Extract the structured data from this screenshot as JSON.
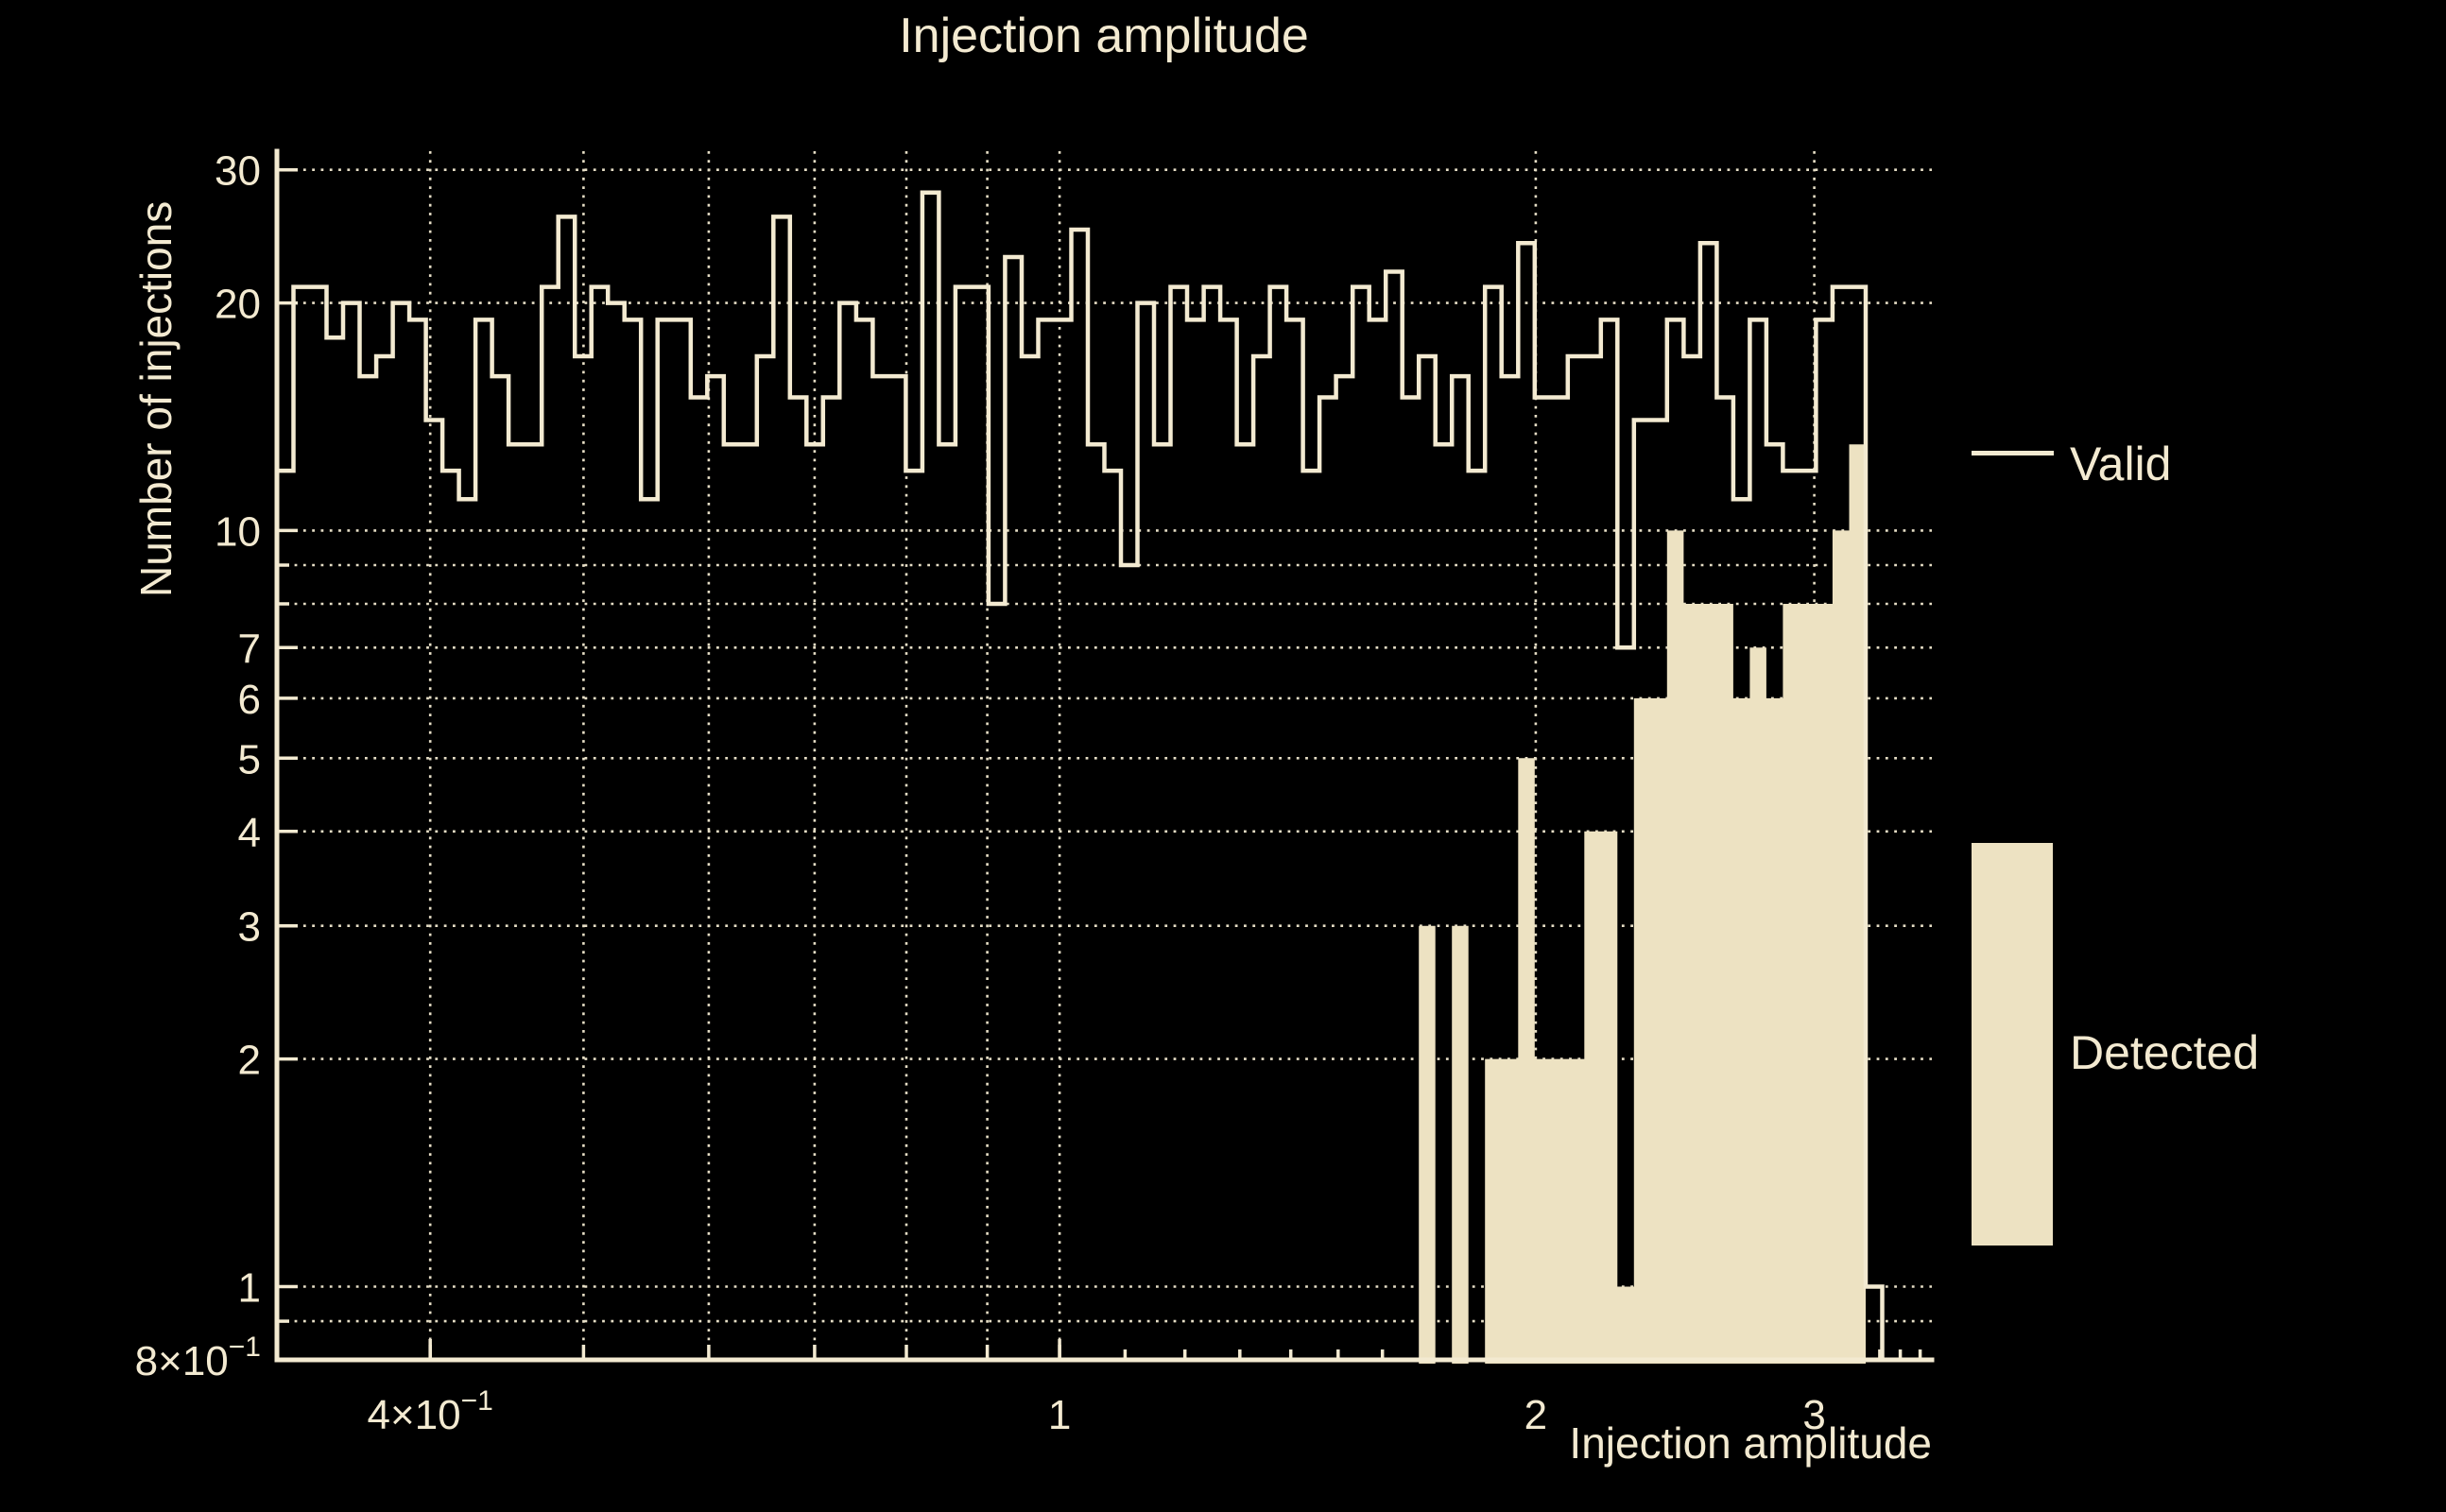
{
  "chart_data": {
    "type": "bar",
    "subtype": "step-histogram-log-log",
    "title": "Injection amplitude",
    "xlabel": "Injection amplitude",
    "ylabel": "Number of injections",
    "x_scale": "log",
    "y_scale": "log",
    "x_range": [
      0.32,
      3.56
    ],
    "y_range": [
      0.8,
      31.75
    ],
    "grid": "dotted",
    "legend_position": "right",
    "bins": {
      "n": 100,
      "xmin": 0.32,
      "xmax": 3.56,
      "spacing": "log"
    },
    "series": [
      {
        "name": "Valid",
        "style": "step-outline",
        "values": [
          12,
          21,
          21,
          18,
          20,
          16,
          17,
          20,
          19,
          14,
          12,
          11,
          19,
          16,
          13,
          13,
          21,
          26,
          17,
          21,
          20,
          19,
          11,
          19,
          19,
          15,
          16,
          13,
          13,
          17,
          26,
          15,
          13,
          15,
          20,
          19,
          16,
          16,
          12,
          28,
          13,
          21,
          21,
          8,
          23,
          17,
          19,
          19,
          25,
          13,
          12,
          9,
          20,
          13,
          21,
          19,
          21,
          19,
          13,
          17,
          21,
          19,
          12,
          15,
          16,
          21,
          19,
          22,
          15,
          17,
          13,
          16,
          12,
          21,
          16,
          24,
          15,
          15,
          17,
          17,
          19,
          7,
          14,
          14,
          19,
          17,
          24,
          15,
          11,
          19,
          13,
          12,
          12,
          19,
          21,
          21,
          1,
          0,
          0,
          0
        ]
      },
      {
        "name": "Detected",
        "style": "filled",
        "values": [
          0,
          0,
          0,
          0,
          0,
          0,
          0,
          0,
          0,
          0,
          0,
          0,
          0,
          0,
          0,
          0,
          0,
          0,
          0,
          0,
          0,
          0,
          0,
          0,
          0,
          0,
          0,
          0,
          0,
          0,
          0,
          0,
          0,
          0,
          0,
          0,
          0,
          0,
          0,
          0,
          0,
          0,
          0,
          0,
          0,
          0,
          0,
          0,
          0,
          0,
          0,
          0,
          0,
          0,
          0,
          0,
          0,
          0,
          0,
          0,
          0,
          0,
          0,
          0,
          0,
          0,
          0,
          0,
          0,
          3,
          0,
          3,
          0,
          2,
          2,
          5,
          2,
          2,
          2,
          4,
          4,
          1,
          6,
          6,
          10,
          8,
          8,
          8,
          6,
          7,
          6,
          8,
          8,
          8,
          10,
          13,
          0,
          0,
          0,
          0
        ]
      }
    ],
    "x_ticks": [
      {
        "v": 0.4,
        "mant": "4×10",
        "exp": "−1"
      },
      {
        "v": 1,
        "label": "1"
      },
      {
        "v": 2,
        "label": "2"
      },
      {
        "v": 3,
        "label": "3"
      }
    ],
    "y_ticks": [
      {
        "v": 30,
        "label": "30"
      },
      {
        "v": 20,
        "label": "20"
      },
      {
        "v": 10,
        "label": "10"
      },
      {
        "v": 7,
        "label": "7"
      },
      {
        "v": 6,
        "label": "6"
      },
      {
        "v": 5,
        "label": "5"
      },
      {
        "v": 4,
        "label": "4"
      },
      {
        "v": 3,
        "label": "3"
      },
      {
        "v": 2,
        "label": "2"
      },
      {
        "v": 1,
        "label": "1"
      },
      {
        "v": 0.8,
        "mant": "8×10",
        "exp": "−1"
      }
    ],
    "y_minor_ticks": [
      9,
      8,
      0.9
    ],
    "x_minor_ticks": [
      1.1,
      1.2,
      1.3,
      1.4,
      1.5,
      1.6,
      1.7,
      1.8,
      1.9,
      2.1,
      2.2,
      2.3,
      2.4,
      2.5,
      2.6,
      2.7,
      2.8,
      2.9,
      3.1,
      3.2,
      3.3,
      3.4,
      3.5
    ],
    "gridlines_h": [
      30,
      20,
      10,
      9,
      8,
      7,
      6,
      5,
      4,
      3,
      2,
      1,
      0.9
    ],
    "gridlines_v": [
      0.4,
      0.5,
      0.6,
      0.7,
      0.8,
      0.9,
      1,
      2,
      3
    ],
    "legend": [
      {
        "label": "Valid",
        "style": "line"
      },
      {
        "label": "Detected",
        "style": "fill"
      }
    ],
    "colors": {
      "background": "#000000",
      "line": "#F3EAD1",
      "fill": "#EDE2C2",
      "text": "#F3EAD1"
    }
  }
}
